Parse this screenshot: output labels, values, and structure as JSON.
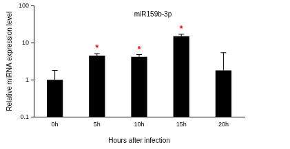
{
  "chart_data": {
    "type": "bar",
    "categories": [
      "0h",
      "5h",
      "10h",
      "15h",
      "20h"
    ],
    "values": [
      1.0,
      4.5,
      4.2,
      15,
      1.8
    ],
    "errors": [
      0.8,
      0.6,
      0.6,
      2,
      3.6
    ],
    "color": "#000000",
    "log": "y",
    "ylim": [
      0.1,
      100
    ],
    "yticks": [
      0.1,
      1,
      10,
      100
    ],
    "grid": false,
    "x_label": "Hours after infection",
    "y_label": "Relative miRNA expression level",
    "annotations": [
      {
        "text": "miR159b-3p"
      },
      {
        "text": "*",
        "category": "5h"
      },
      {
        "text": "*",
        "category": "10h"
      },
      {
        "text": "*",
        "category": "15h"
      }
    ]
  }
}
